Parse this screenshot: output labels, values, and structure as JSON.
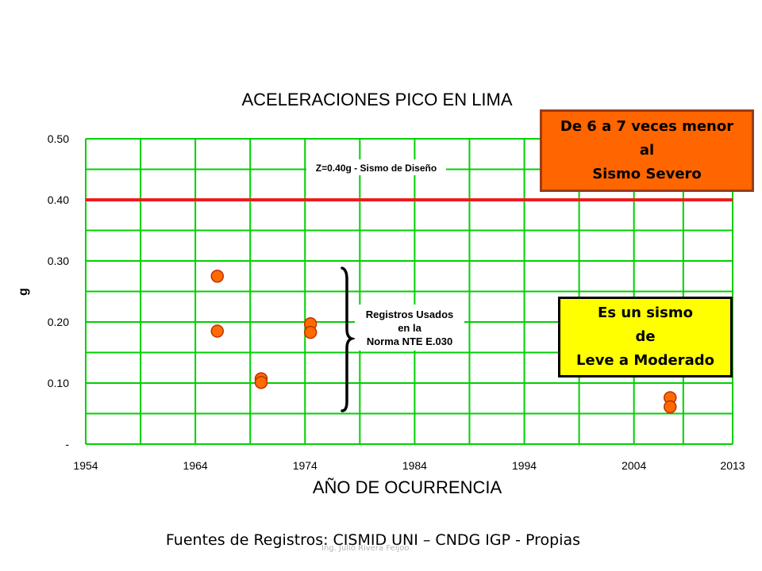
{
  "chart_data": {
    "type": "scatter",
    "title": "ACELERACIONES PICO EN LIMA",
    "xlabel": "AÑO DE OCURRENCIA",
    "ylabel": "g",
    "xlim": [
      1954,
      2013
    ],
    "ylim": [
      0,
      0.5
    ],
    "x_ticks": [
      "1954",
      "1964",
      "1974",
      "1984",
      "1994",
      "2004",
      "2013"
    ],
    "y_ticks": [
      "-",
      "0.10",
      "0.20",
      "0.30",
      "0.40",
      "0.50"
    ],
    "grid": true,
    "points": [
      {
        "x": 1966,
        "y": 0.275
      },
      {
        "x": 1966,
        "y": 0.185
      },
      {
        "x": 1970,
        "y": 0.107
      },
      {
        "x": 1970,
        "y": 0.101
      },
      {
        "x": 1974.5,
        "y": 0.197
      },
      {
        "x": 1974.5,
        "y": 0.183
      },
      {
        "x": 2007.3,
        "y": 0.076
      },
      {
        "x": 2007.3,
        "y": 0.061
      }
    ],
    "reference_line": {
      "y": 0.4,
      "label": "Z=0.40g - Sismo de Diseño",
      "color": "#ee1c1c"
    },
    "bracket_label": [
      "Registros Usados",
      "en la",
      "Norma NTE E.030"
    ],
    "colors": {
      "grid": "#00d000",
      "marker_fill": "#ff6b00",
      "marker_edge": "#c03000"
    }
  },
  "callouts": {
    "severo": {
      "line1": "De 6 a 7 veces menor",
      "line2": "al",
      "line3": "Sismo Severo",
      "color": "#ff6600"
    },
    "leve": {
      "line1": "Es un sismo",
      "line2": "de",
      "line3": "Leve a Moderado",
      "color": "#ffff00"
    }
  },
  "footer": {
    "source": "Fuentes de Registros: CISMID UNI – CNDG IGP - Propias"
  },
  "watermark": "Ing. Julio Rivera Feijoo"
}
